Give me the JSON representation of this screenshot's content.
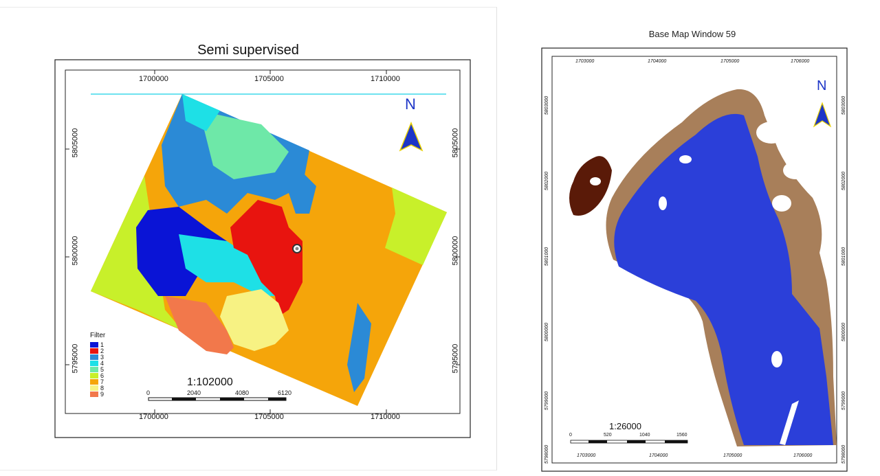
{
  "left_map": {
    "title": "Semi supervised",
    "top_ticks": [
      "1700000",
      "1705000",
      "1710000"
    ],
    "bottom_ticks": [
      "1700000",
      "1705000",
      "1710000"
    ],
    "left_ticks": [
      "5805000",
      "5800000",
      "5795000"
    ],
    "right_ticks": [
      "5805000",
      "5800000",
      "5795000"
    ],
    "north_label": "N",
    "scale_text": "1:102000",
    "scale_ticks": [
      "0",
      "2040",
      "4080",
      "6120"
    ],
    "legend": {
      "title": "Filter",
      "items": [
        {
          "label": "1",
          "color": "#0a14d6"
        },
        {
          "label": "2",
          "color": "#e8140f"
        },
        {
          "label": "3",
          "color": "#2b8ad6"
        },
        {
          "label": "4",
          "color": "#1ee0e6"
        },
        {
          "label": "5",
          "color": "#6ee8a8"
        },
        {
          "label": "6",
          "color": "#c8f02a"
        },
        {
          "label": "7",
          "color": "#f5a50a"
        },
        {
          "label": "8",
          "color": "#f7f283"
        },
        {
          "label": "9",
          "color": "#f2784b"
        }
      ]
    }
  },
  "right_map": {
    "title": "Base Map Window 59",
    "top_ticks": [
      "1703000",
      "1704000",
      "1705000",
      "1706000"
    ],
    "bottom_ticks": [
      "1703000",
      "1704000",
      "1705000",
      "1706000"
    ],
    "left_ticks": [
      "5803000",
      "5802000",
      "5801000",
      "5800000",
      "5799000",
      "5798000"
    ],
    "right_ticks": [
      "5803000",
      "5802000",
      "5801000",
      "5800000",
      "5799000",
      "5798000"
    ],
    "north_label": "N",
    "scale_text": "1:26000",
    "scale_ticks": [
      "0",
      "520",
      "1040",
      "1560"
    ],
    "colors": {
      "water": "#2b3fd9",
      "shore": "#a87f5a",
      "island": "#5a1a08"
    }
  }
}
